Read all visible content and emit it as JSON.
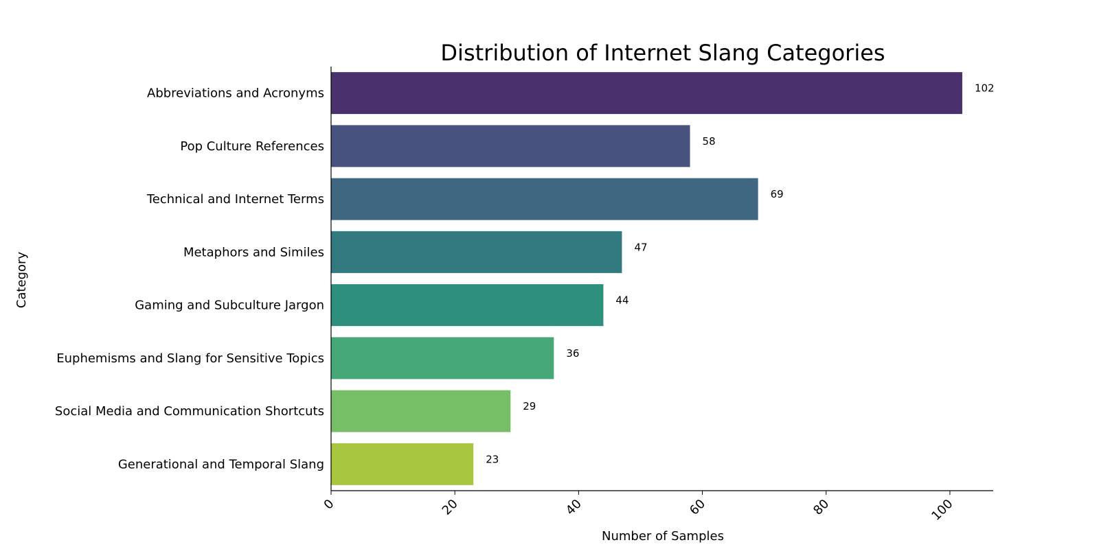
{
  "chart_data": {
    "type": "bar",
    "orientation": "horizontal",
    "title": "Distribution of Internet Slang Categories",
    "xlabel": "Number of Samples",
    "ylabel": "Category",
    "xlim": [
      0,
      107
    ],
    "xticks": [
      0,
      20,
      40,
      60,
      80,
      100
    ],
    "grid": false,
    "categories": [
      "Abbreviations and Acronyms",
      "Pop Culture References",
      "Technical and Internet Terms",
      "Metaphors and Similes",
      "Gaming and Subculture Jargon",
      "Euphemisms and Slang for Sensitive Topics",
      "Social Media and Communication Shortcuts",
      "Generational and Temporal Slang"
    ],
    "values": [
      102,
      58,
      69,
      47,
      44,
      36,
      29,
      23
    ],
    "colors": [
      "#4a316e",
      "#48527f",
      "#3f6782",
      "#337a80",
      "#2e8f7d",
      "#46a877",
      "#77bf67",
      "#a9c641"
    ]
  }
}
